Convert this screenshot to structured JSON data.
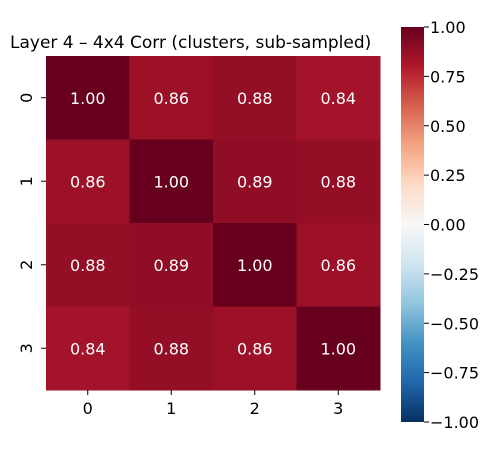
{
  "chart_data": {
    "type": "heatmap",
    "title": "Layer 4 – 4x4 Corr (clusters, sub-sampled)",
    "x_categories": [
      "0",
      "1",
      "2",
      "3"
    ],
    "y_categories": [
      "0",
      "1",
      "2",
      "3"
    ],
    "matrix": [
      [
        1.0,
        0.86,
        0.88,
        0.84
      ],
      [
        0.86,
        1.0,
        0.89,
        0.88
      ],
      [
        0.88,
        0.89,
        1.0,
        0.86
      ],
      [
        0.84,
        0.88,
        0.86,
        1.0
      ]
    ],
    "value_format": "2-decimals",
    "colorbar": {
      "min": -1.0,
      "max": 1.0,
      "colormap": "RdBu_r",
      "ticks": [
        "1.00",
        "0.75",
        "0.50",
        "0.25",
        "0.00",
        "−0.25",
        "−0.50",
        "−0.75",
        "−1.00"
      ],
      "tick_values": [
        1.0,
        0.75,
        0.5,
        0.25,
        0.0,
        -0.25,
        -0.5,
        -0.75,
        -1.0
      ]
    },
    "annotation_color": "#ffffff",
    "grid": false,
    "legend": "colorbar-right"
  }
}
